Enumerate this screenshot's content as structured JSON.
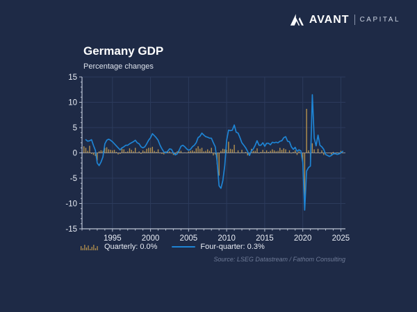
{
  "brand": {
    "name": "AVANT",
    "suffix": "CAPITAL"
  },
  "header": {
    "title": "Germany GDP",
    "subtitle": "Percentage changes"
  },
  "legend": {
    "quarterly_label": "Quarterly: 0.0%",
    "four_quarter_label": "Four-quarter: 0.3%"
  },
  "source": "Source: LSEG Datastream / Fathom Consulting",
  "colors": {
    "background": "#1e2a46",
    "bar": "#b5914e",
    "line": "#1e84d4",
    "axis": "#bcc4d4",
    "grid": "#2c3b5c",
    "tick_label": "#e8ecf4",
    "title": "#ffffff",
    "source_text": "#6f7b97"
  },
  "chart_data": {
    "type": "line",
    "title": "Germany GDP",
    "subtitle": "Percentage changes",
    "ylabel": "Percentage changes",
    "xlabel": "",
    "xlim": [
      1991,
      2025.6
    ],
    "ylim": [
      -15,
      15
    ],
    "yticks": [
      15,
      10,
      5,
      0,
      -5,
      -10,
      -15
    ],
    "xticks": [
      1995,
      2000,
      2005,
      2010,
      2015,
      2020,
      2025
    ],
    "grid": true,
    "legend_position": "bottom",
    "series": [
      {
        "name": "Quarterly",
        "kind": "bar",
        "latest_label": "Quarterly: 0.0%",
        "x_start": 1991.25,
        "x_step": 0.25,
        "values": [
          1.3,
          1.0,
          0.4,
          1.4,
          -0.2,
          -0.4,
          -0.6,
          -1.5,
          0.3,
          0.5,
          0.4,
          1.0,
          1.1,
          0.7,
          0.6,
          0.5,
          0.6,
          0.2,
          -0.3,
          -0.2,
          0.8,
          0.7,
          0.2,
          0.3,
          0.9,
          0.6,
          0.3,
          1.0,
          0.1,
          0.3,
          -0.2,
          0.5,
          0.3,
          0.8,
          1.0,
          1.0,
          1.2,
          0.4,
          0.2,
          0.7,
          0.0,
          -0.2,
          -0.3,
          0.3,
          0.2,
          0.3,
          -0.1,
          -0.4,
          -0.2,
          0.3,
          0.4,
          0.4,
          0.0,
          0.1,
          0.0,
          0.3,
          0.4,
          0.5,
          0.3,
          0.9,
          1.3,
          0.8,
          1.0,
          0.3,
          0.4,
          0.7,
          0.4,
          1.0,
          -0.5,
          -0.3,
          -2.3,
          -4.5,
          0.4,
          0.8,
          0.7,
          0.6,
          2.2,
          0.8,
          0.7,
          1.6,
          0.1,
          0.5,
          0.0,
          0.6,
          0.1,
          0.2,
          -0.5,
          0.0,
          0.8,
          0.4,
          0.4,
          0.9,
          -0.1,
          0.2,
          0.6,
          0.2,
          0.5,
          0.2,
          0.4,
          0.7,
          0.5,
          0.3,
          0.4,
          1.0,
          0.6,
          0.9,
          0.7,
          0.1,
          0.5,
          -0.1,
          0.2,
          0.5,
          -0.4,
          0.3,
          0.0,
          -1.8,
          -9.7,
          8.7,
          0.5,
          -1.5,
          1.9,
          0.7,
          0.0,
          0.8,
          -0.1,
          0.5,
          -0.4,
          0.1,
          0.0,
          0.0,
          -0.3,
          0.2,
          -0.3,
          0.1,
          -0.2,
          0.4,
          0.0
        ]
      },
      {
        "name": "Four-quarter",
        "kind": "line",
        "latest_label": "Four-quarter: 0.3%",
        "x_start": 1991.5,
        "x_step": 0.25,
        "values": [
          2.6,
          2.3,
          2.4,
          2.6,
          1.5,
          0.5,
          -2.0,
          -2.5,
          -1.8,
          -0.8,
          1.8,
          2.5,
          2.7,
          2.5,
          2.2,
          1.8,
          1.4,
          1.0,
          0.6,
          1.0,
          1.2,
          1.5,
          1.5,
          1.8,
          2.0,
          2.2,
          2.5,
          2.0,
          1.8,
          1.2,
          1.0,
          1.2,
          1.8,
          2.5,
          3.0,
          3.8,
          3.4,
          3.0,
          2.5,
          1.5,
          0.8,
          0.2,
          0.0,
          0.3,
          0.8,
          0.7,
          0.0,
          -0.4,
          -0.2,
          0.5,
          1.3,
          1.5,
          1.2,
          0.8,
          0.5,
          0.7,
          1.2,
          1.5,
          2.0,
          3.0,
          3.3,
          3.9,
          3.5,
          3.2,
          3.1,
          2.9,
          2.9,
          2.0,
          1.2,
          -1.7,
          -6.5,
          -7.0,
          -5.5,
          -2.5,
          2.5,
          4.5,
          4.4,
          4.5,
          5.5,
          4.1,
          3.9,
          3.0,
          2.0,
          1.5,
          1.0,
          0.3,
          -0.5,
          0.4,
          0.8,
          1.5,
          2.4,
          1.5,
          1.5,
          2.0,
          1.3,
          1.9,
          1.9,
          1.6,
          2.1,
          2.0,
          2.1,
          2.0,
          2.3,
          2.4,
          3.0,
          3.2,
          2.3,
          2.2,
          1.2,
          0.7,
          1.1,
          0.3,
          0.6,
          0.4,
          -1.9,
          -11.3,
          -3.6,
          -2.9,
          -2.6,
          11.5,
          2.9,
          1.4,
          3.5,
          1.5,
          1.2,
          0.7,
          -0.3,
          -0.5,
          -0.7,
          -0.5,
          -0.2,
          -0.1,
          -0.3,
          -0.2,
          0.0,
          0.3
        ]
      }
    ]
  }
}
